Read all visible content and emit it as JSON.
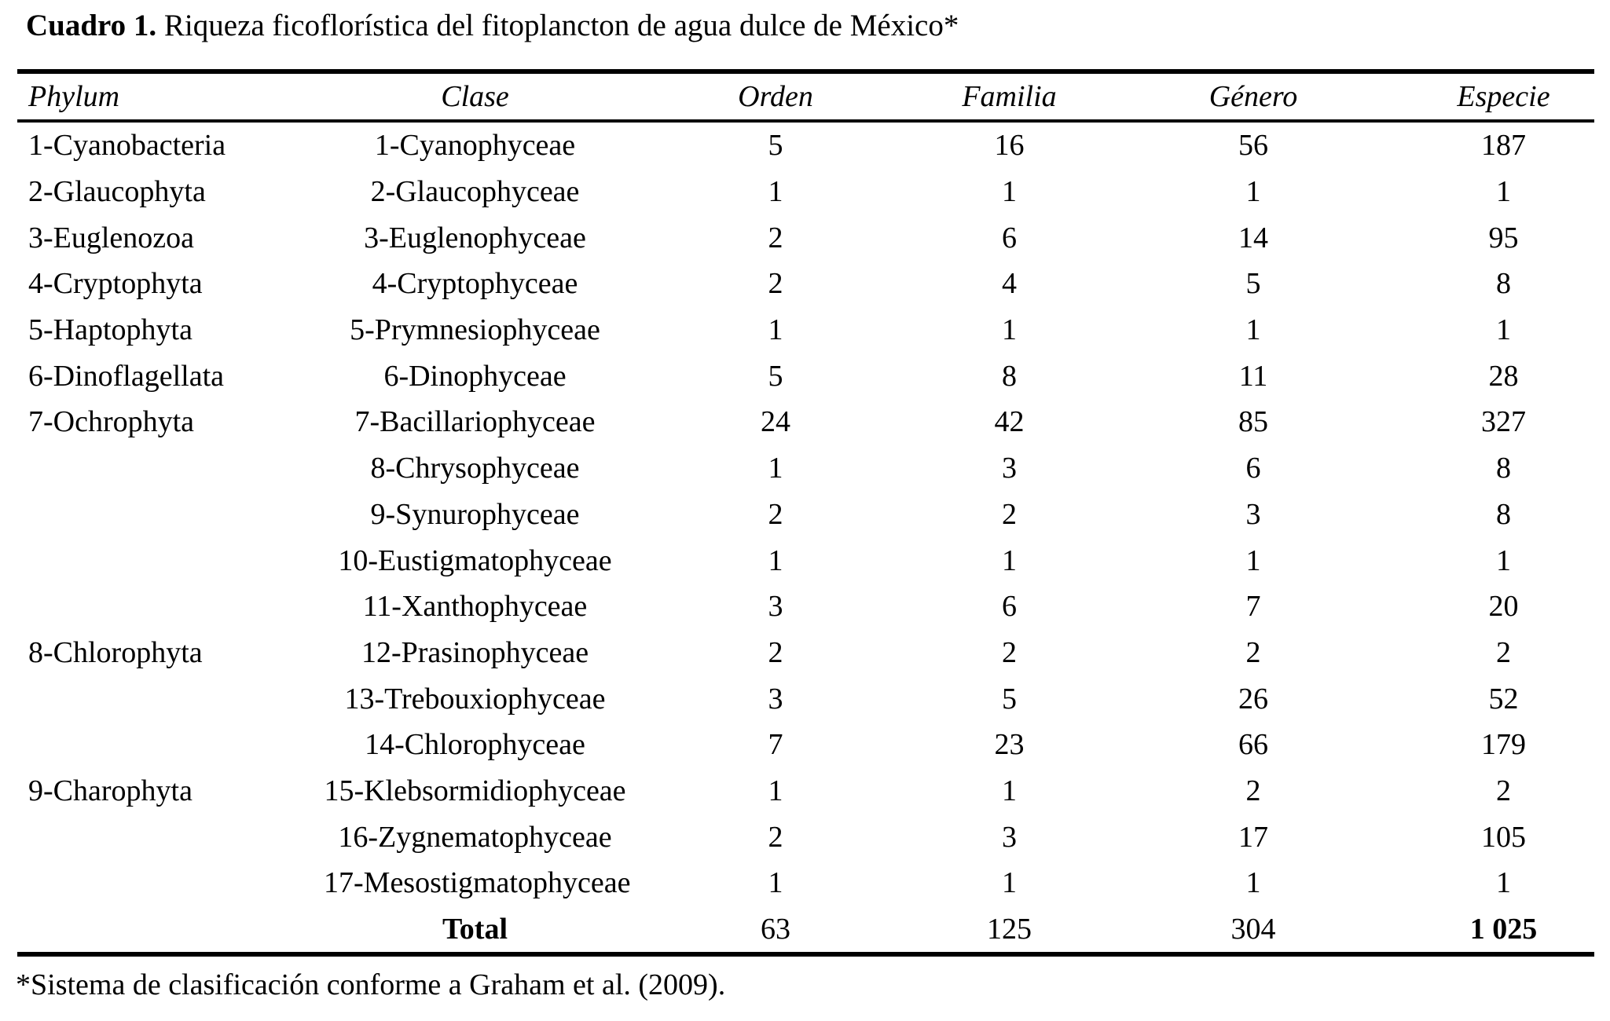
{
  "caption": {
    "label": "Cuadro 1.",
    "text": " Riqueza ficoflorística del fitoplancton de agua dulce de México*"
  },
  "table": {
    "columns": {
      "phylum": "Phylum",
      "clase": "Clase",
      "orden": "Orden",
      "familia": "Familia",
      "genero": "Género",
      "especie": "Especie"
    },
    "rows": [
      {
        "phylum": "1-Cyanobacteria",
        "clase": "1-Cyanophyceae",
        "orden": "5",
        "familia": "16",
        "genero": "56",
        "especie": "187"
      },
      {
        "phylum": "2-Glaucophyta",
        "clase": "2-Glaucophyceae",
        "orden": "1",
        "familia": "1",
        "genero": "1",
        "especie": "1"
      },
      {
        "phylum": "3-Euglenozoa",
        "clase": "3-Euglenophyceae",
        "orden": "2",
        "familia": "6",
        "genero": "14",
        "especie": "95"
      },
      {
        "phylum": "4-Cryptophyta",
        "clase": "4-Cryptophyceae",
        "orden": "2",
        "familia": "4",
        "genero": "5",
        "especie": "8"
      },
      {
        "phylum": "5-Haptophyta",
        "clase": "5-Prymnesiophyceae",
        "orden": "1",
        "familia": "1",
        "genero": "1",
        "especie": "1"
      },
      {
        "phylum": "6-Dinoflagellata",
        "clase": "6-Dinophyceae",
        "orden": "5",
        "familia": "8",
        "genero": "11",
        "especie": "28"
      },
      {
        "phylum": "7-Ochrophyta",
        "clase": "7-Bacillariophyceae",
        "orden": "24",
        "familia": "42",
        "genero": "85",
        "especie": "327"
      },
      {
        "phylum": "",
        "clase": "8-Chrysophyceae",
        "orden": "1",
        "familia": "3",
        "genero": "6",
        "especie": "8"
      },
      {
        "phylum": "",
        "clase": "9-Synurophyceae",
        "orden": "2",
        "familia": "2",
        "genero": "3",
        "especie": "8"
      },
      {
        "phylum": "",
        "clase": "10-Eustigmatophyceae",
        "orden": "1",
        "familia": "1",
        "genero": "1",
        "especie": "1"
      },
      {
        "phylum": "",
        "clase": "11-Xanthophyceae",
        "orden": "3",
        "familia": "6",
        "genero": "7",
        "especie": "20"
      },
      {
        "phylum": "8-Chlorophyta",
        "clase": "12-Prasinophyceae",
        "orden": "2",
        "familia": "2",
        "genero": "2",
        "especie": "2"
      },
      {
        "phylum": "",
        "clase": "13-Trebouxiophyceae",
        "orden": "3",
        "familia": "5",
        "genero": "26",
        "especie": "52"
      },
      {
        "phylum": "",
        "clase": "14-Chlorophyceae",
        "orden": "7",
        "familia": "23",
        "genero": "66",
        "especie": "179"
      },
      {
        "phylum": "9-Charophyta",
        "clase": "15-Klebsormidiophyceae",
        "orden": "1",
        "familia": "1",
        "genero": "2",
        "especie": "2"
      },
      {
        "phylum": "",
        "clase": "16-Zygnematophyceae",
        "orden": "2",
        "familia": "3",
        "genero": "17",
        "especie": "105"
      },
      {
        "phylum": "",
        "clase": "17-Mesostigmatophyceae",
        "orden": "1",
        "familia": "1",
        "genero": "1",
        "especie": "1"
      }
    ],
    "total": {
      "phylum": "",
      "clase": "Total",
      "orden": "63",
      "familia": "125",
      "genero": "304",
      "especie": "1 025"
    }
  },
  "footnote": "*Sistema de clasificación conforme a Graham et al. (2009)."
}
